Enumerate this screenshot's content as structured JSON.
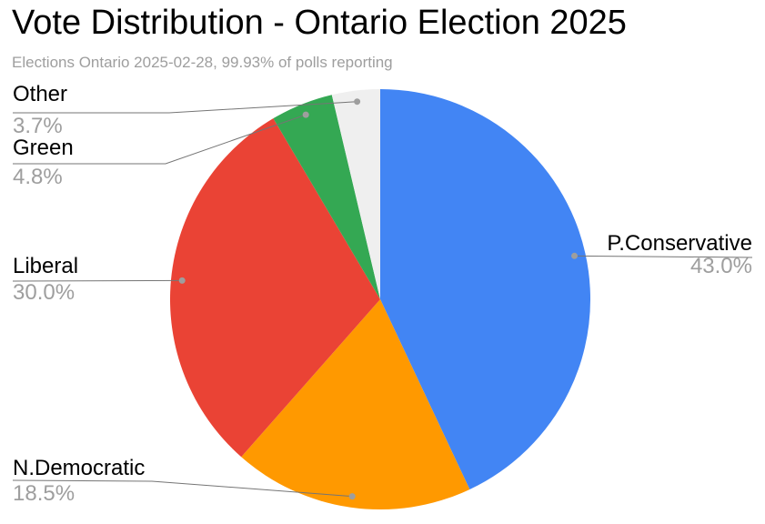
{
  "header": {
    "title": "Vote Distribution - Ontario Election 2025",
    "subtitle": "Elections Ontario 2025-02-28, 99.93% of polls reporting"
  },
  "chart_data": {
    "type": "pie",
    "title": "Vote Distribution - Ontario Election 2025",
    "subtitle": "Elections Ontario 2025-02-28, 99.93% of polls reporting",
    "start_angle_deg": 0,
    "direction": "clockwise",
    "slices": [
      {
        "label": "P.Conservative",
        "value": 43.0,
        "display": "43.0%",
        "color": "#4285f4"
      },
      {
        "label": "N.Democratic",
        "value": 18.5,
        "display": "18.5%",
        "color": "#ff9900"
      },
      {
        "label": "Liberal",
        "value": 30.0,
        "display": "30.0%",
        "color": "#ea4335"
      },
      {
        "label": "Green",
        "value": 4.8,
        "display": "4.8%",
        "color": "#34a853"
      },
      {
        "label": "Other",
        "value": 3.7,
        "display": "3.7%",
        "color": "#efefef"
      }
    ],
    "colors": {
      "background": "#ffffff",
      "title_text": "#000000",
      "subtitle_text": "#9e9e9e",
      "label_text": "#000000",
      "pct_text": "#9e9e9e",
      "leader_line": "#757575",
      "leader_dot": "#9e9e9e"
    },
    "legend_position": "labeled-callouts"
  }
}
